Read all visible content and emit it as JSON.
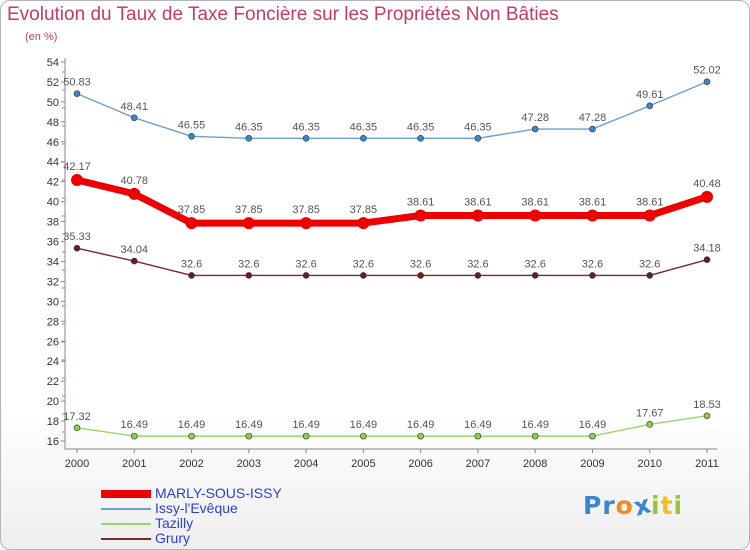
{
  "title": "Evolution du Taux de Taxe Foncière sur les Propriétés Non Bâties",
  "unit_label": "(en %)",
  "colors": {
    "title": "#c43a6a",
    "axis": "#888888",
    "tick_text": "#333333",
    "value_text": "#555555",
    "legend_text": "#2a3fd6"
  },
  "logo": {
    "text": "Proxiti",
    "letters": [
      {
        "char": "P",
        "color": "#3a86d0"
      },
      {
        "char": "r",
        "color": "#3a86d0"
      },
      {
        "char": "o",
        "color": "#f08c1c"
      },
      {
        "char": "x",
        "color": "#3a86d0"
      },
      {
        "char": "i",
        "color": "#9ac43a"
      },
      {
        "char": "t",
        "color": "#f0c020"
      },
      {
        "char": "i",
        "color": "#9ac43a"
      }
    ]
  },
  "chart_data": {
    "type": "line",
    "title": "Evolution du Taux de Taxe Foncière sur les Propriétés Non Bâties",
    "ylabel": "(en %)",
    "xlabel": "",
    "categories": [
      "2000",
      "2001",
      "2002",
      "2003",
      "2004",
      "2005",
      "2006",
      "2007",
      "2008",
      "2009",
      "2010",
      "2011"
    ],
    "ylim": [
      16,
      54
    ],
    "yticks": [
      16,
      18,
      20,
      22,
      24,
      26,
      28,
      30,
      32,
      34,
      36,
      38,
      40,
      42,
      44,
      46,
      48,
      50,
      52,
      54
    ],
    "grid": false,
    "legend_position": "bottom-left",
    "series": [
      {
        "name": "Issy-l'Evêque",
        "color": "#6a9fd6",
        "marker_fill": "#3a86d0",
        "bold": false,
        "values": [
          50.83,
          48.41,
          46.55,
          46.35,
          46.35,
          46.35,
          46.35,
          46.35,
          47.28,
          47.28,
          49.61,
          52.02
        ],
        "labels": [
          "50.83",
          "48.41",
          "46.55",
          "46.35",
          "46.35",
          "46.35",
          "46.35",
          "46.35",
          "47.28",
          "47.28",
          "49.61",
          "52.02"
        ]
      },
      {
        "name": "MARLY-SOUS-ISSY",
        "color": "#ee0000",
        "marker_fill": "#ee0000",
        "bold": true,
        "values": [
          42.17,
          40.78,
          37.85,
          37.85,
          37.85,
          37.85,
          38.61,
          38.61,
          38.61,
          38.61,
          38.61,
          40.48
        ],
        "labels": [
          "42.17",
          "40.78",
          "37.85",
          "37.85",
          "37.85",
          "37.85",
          "38.61",
          "38.61",
          "38.61",
          "38.61",
          "38.61",
          "40.48"
        ]
      },
      {
        "name": "Grury",
        "color": "#7a2a2a",
        "marker_fill": "#6a1e1e",
        "bold": false,
        "values": [
          35.33,
          34.04,
          32.6,
          32.6,
          32.6,
          32.6,
          32.6,
          32.6,
          32.6,
          32.6,
          32.6,
          34.18
        ],
        "labels": [
          "35.33",
          "34.04",
          "32.6",
          "32.6",
          "32.6",
          "32.6",
          "32.6",
          "32.6",
          "32.6",
          "32.6",
          "32.6",
          "34.18"
        ]
      },
      {
        "name": "Tazilly",
        "color": "#9ad66a",
        "marker_fill": "#8ad04a",
        "bold": false,
        "values": [
          17.32,
          16.49,
          16.49,
          16.49,
          16.49,
          16.49,
          16.49,
          16.49,
          16.49,
          16.49,
          17.67,
          18.53
        ],
        "labels": [
          "17.32",
          "16.49",
          "16.49",
          "16.49",
          "16.49",
          "16.49",
          "16.49",
          "16.49",
          "16.49",
          "16.49",
          "17.67",
          "18.53"
        ]
      }
    ],
    "legend": [
      {
        "name": "MARLY-SOUS-ISSY",
        "color": "#ee0000",
        "bold": true
      },
      {
        "name": "Issy-l'Evêque",
        "color": "#6a9fd6",
        "bold": false
      },
      {
        "name": "Tazilly",
        "color": "#9ad66a",
        "bold": false
      },
      {
        "name": "Grury",
        "color": "#7a2a2a",
        "bold": false
      }
    ]
  }
}
